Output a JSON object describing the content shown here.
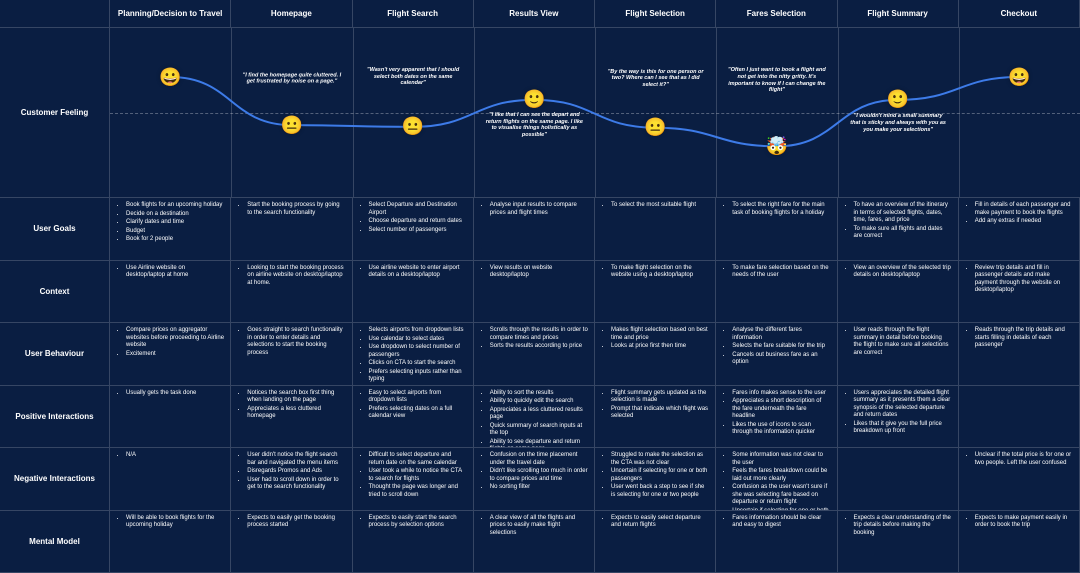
{
  "columns": [
    "Planning/Decision to Travel",
    "Homepage",
    "Flight Search",
    "Results View",
    "Flight Selection",
    "Fares Selection",
    "Flight Summary",
    "Checkout"
  ],
  "rows": [
    "Customer Feeling",
    "User Goals",
    "Context",
    "User Behaviour",
    "Positive Interactions",
    "Negative Interactions",
    "Mental Model"
  ],
  "feeling": {
    "emojis": [
      {
        "col": 0,
        "y": 0.28,
        "face": "😀"
      },
      {
        "col": 1,
        "y": 0.85,
        "face": "😐"
      },
      {
        "col": 2,
        "y": 0.87,
        "face": "😐"
      },
      {
        "col": 3,
        "y": 0.55,
        "face": "🙂"
      },
      {
        "col": 4,
        "y": 0.88,
        "face": "😐"
      },
      {
        "col": 5,
        "y": 1.1,
        "face": "🤯"
      },
      {
        "col": 6,
        "y": 0.55,
        "face": "🙂"
      },
      {
        "col": 7,
        "y": 0.28,
        "face": "😀"
      }
    ],
    "quotes": [
      {
        "col": 1,
        "y": 0.4,
        "text": "\"I find the homepage quite cluttered. I get frustrated by noise on a page.\""
      },
      {
        "col": 2,
        "y": 0.38,
        "text": "\"Wasn't very apparent that I should select both dates on the same calendar\""
      },
      {
        "col": 3,
        "y": 0.95,
        "text": "\"I like that I can see the depart and return flights on the same page. I like to visualise things holistically as possible\""
      },
      {
        "col": 4,
        "y": 0.4,
        "text": "\"By the way is this for one person or two? Where can I see that as I did select it?\""
      },
      {
        "col": 5,
        "y": 0.42,
        "text": "\"Often I just want to book a flight and not get into the nitty gritty. It's important to know if I can change the flight\""
      },
      {
        "col": 6,
        "y": 0.93,
        "text": "\"I wouldn't mind a small summary that is sticky and always with you as you make your selections\""
      }
    ],
    "curve_color": "#3d7be8"
  },
  "goals": [
    [
      "Book flights for an upcoming holiday",
      "Decide on a destination",
      "Clarify dates and time",
      "Budget",
      "Book for 2 people"
    ],
    [
      "Start the booking process by going to the search functionality"
    ],
    [
      "Select Departure and Destination Airport",
      "Choose departure and return dates",
      "Select number of passengers"
    ],
    [
      "Analyse input results to compare prices and flight times"
    ],
    [
      "To select the most suitable flight"
    ],
    [
      "To select the right fare for the main task of booking flights for a holiday"
    ],
    [
      "To have an overview of the itinerary in terms of selected flights, dates, time, fares, and price",
      "To make sure all flights and dates are correct"
    ],
    [
      "Fill in details of each passenger and make payment to book the flights",
      "Add any extras if needed"
    ]
  ],
  "context": [
    [
      "Use Airline website on desktop/laptop at home"
    ],
    [
      "Looking to start the booking process on airline website on desktop/laptop at home."
    ],
    [
      "Use airline website to enter airport details on a desktop/laptop"
    ],
    [
      "View results on website desktop/laptop"
    ],
    [
      "To make flight selection on the website using a desktop/laptop"
    ],
    [
      "To make fare selection based on the needs of the user"
    ],
    [
      "View an overview of the selected trip details on desktop/laptop"
    ],
    [
      "Review trip details and fill in passenger details and make payment through the website on desktop/laptop"
    ]
  ],
  "behaviour": [
    [
      "Compare prices on aggregator websites before proceeding to Airline website",
      "Excitement"
    ],
    [
      "Goes straight to search functionality in order to enter details and selections to start the booking process"
    ],
    [
      "Selects airports from dropdown lists",
      "Use calendar to select dates",
      "Use dropdown to select number of passengers",
      "Clicks on CTA to start the search",
      "Prefers selecting inputs rather than typing",
      "Starts typing and then selects from dropdown"
    ],
    [
      "Scrolls through the results in order to compare times and prices",
      "Sorts the results according to price"
    ],
    [
      "Makes flight selection based on best time and price",
      "Looks at price first then time"
    ],
    [
      "Analyse the different fares information",
      "Selects the fare suitable for the trip",
      "Cancels out business fare as an option"
    ],
    [
      "User reads through the flight summary in detail before booking the flight to make sure all selections are correct"
    ],
    [
      "Reads through the trip details and starts filling in details of each passenger"
    ]
  ],
  "positive": [
    [
      "Usually gets the task done"
    ],
    [
      "Notices the search box first thing when landing on the page",
      "Appreciates a less cluttered homepage"
    ],
    [
      "Easy to select airports from dropdown lists",
      "Prefers selecting dates on a full calendar view"
    ],
    [
      "Ability to sort the results",
      "Ability to quickly edit the search",
      "Appreciates a less cluttered results page",
      "Quick summary of search inputs at the top",
      "Ability to see departure and return flights on same page"
    ],
    [
      "Flight summary gets updated as the selection is made",
      "Prompt that indicate which flight was selected"
    ],
    [
      "Fares info makes sense to the user",
      "Appreciates a short description of the fare underneath the fare headline",
      "Likes the use of icons to scan through the information quicker"
    ],
    [
      "Users appreciates the detailed flight summary as it presents them a clear synopsis of the selected departure and return dates",
      "Likes that it give you the full price breakdown up front"
    ],
    []
  ],
  "negative": [
    [
      "N/A"
    ],
    [
      "User didn't notice the flight search bar and navigated the menu items",
      "Disregards Promos and Ads",
      "User had to scroll down in order to get to the search functionality"
    ],
    [
      "Difficult to select departure and return date on the same calendar",
      "User took a while to notice the CTA to search for flights",
      "Thought the page was longer and tried to scroll down"
    ],
    [
      "Confusion on the time placement under the travel date",
      "Didn't like scrolling too much in order to compare prices and time",
      "No sorting filter"
    ],
    [
      "Struggled to make the selection as the CTA was not clear",
      "Uncertain if selecting for one or both passengers",
      "User went back a step to see if she is selecting for one or two people"
    ],
    [
      "Some information was not clear to the user",
      "Feels the fares breakdown could be laid out more clearly",
      "Confusion as the user wasn't sure if she was selecting fare based on departure or return flight",
      "Uncertain if selecting for one or both passengers",
      "Scrolling sideways in order to read all the fares info"
    ],
    [],
    [
      "Unclear if the total price is for one or two people. Left the user confused"
    ]
  ],
  "mental": [
    [
      "Will be able to book flights for the upcoming holiday"
    ],
    [
      "Expects to easily get the booking process started"
    ],
    [
      "Expects to easily start the search process by selection options"
    ],
    [
      "A clear view of all the flights and prices to easily make flight selections"
    ],
    [
      "Expects to easily select departure and return flights"
    ],
    [
      "Fares information should be clear and easy to digest"
    ],
    [
      "Expects a clear understanding of the trip details before making the booking"
    ],
    [
      "Expects to make payment easily in order to book the trip"
    ]
  ]
}
